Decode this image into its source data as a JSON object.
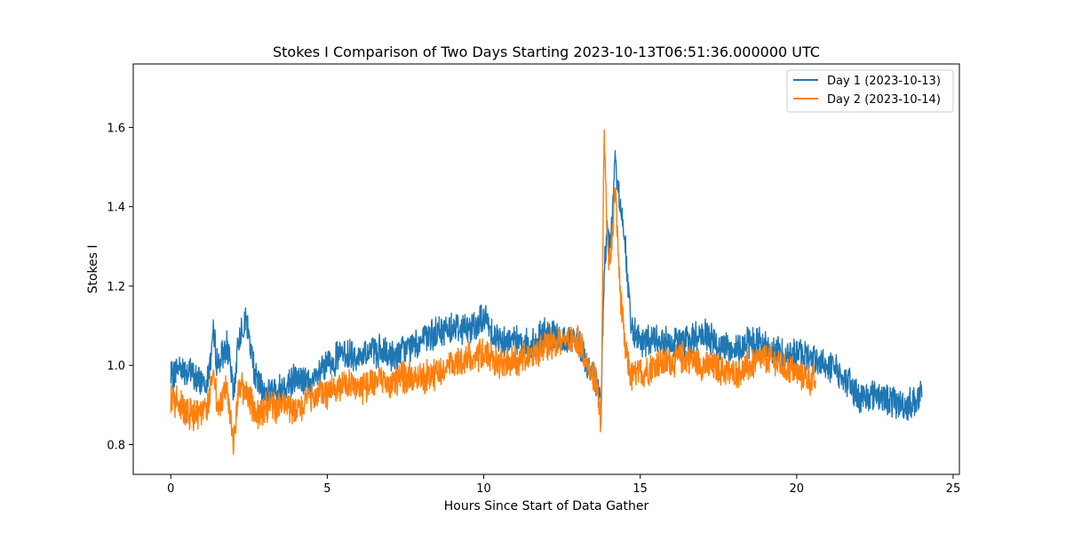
{
  "chart_data": {
    "type": "line",
    "title": "Stokes I Comparison of Two Days Starting 2023-10-13T06:51:36.000000 UTC",
    "xlabel": "Hours Since Start of Data Gather",
    "ylabel": "Stokes I",
    "xlim": [
      -1.2,
      25.2
    ],
    "ylim": [
      0.725,
      1.76
    ],
    "xticks": [
      0,
      5,
      10,
      15,
      20,
      25
    ],
    "xtick_labels": [
      "0",
      "5",
      "10",
      "15",
      "20",
      "25"
    ],
    "yticks": [
      0.8,
      1.0,
      1.2,
      1.4,
      1.6
    ],
    "ytick_labels": [
      "0.8",
      "1.0",
      "1.2",
      "1.4",
      "1.6"
    ],
    "grid": false,
    "legend_position": "top-right",
    "series": [
      {
        "name": "Day 1 (2023-10-13)",
        "color": "#1f77b4",
        "x": [
          0,
          0.3,
          0.6,
          0.9,
          1.2,
          1.35,
          1.5,
          1.8,
          2.0,
          2.2,
          2.4,
          2.7,
          3.0,
          3.5,
          4.0,
          4.5,
          5.0,
          5.5,
          6.0,
          6.5,
          7.0,
          7.5,
          8.0,
          8.5,
          9.0,
          9.5,
          10.0,
          10.5,
          11.0,
          11.5,
          12.0,
          12.5,
          13.0,
          13.3,
          13.6,
          13.75,
          13.85,
          13.95,
          14.05,
          14.2,
          14.35,
          14.5,
          14.7,
          15.0,
          15.5,
          16.0,
          16.5,
          17.0,
          17.5,
          18.0,
          18.5,
          19.0,
          19.5,
          20.0,
          20.5,
          21.0,
          21.5,
          22.0,
          22.5,
          23.0,
          23.5,
          24.0
        ],
        "y": [
          0.97,
          1.0,
          0.98,
          0.96,
          0.97,
          1.08,
          1.0,
          1.05,
          0.93,
          1.08,
          1.12,
          0.97,
          0.93,
          0.94,
          0.97,
          0.95,
          1.0,
          1.03,
          1.02,
          1.04,
          1.02,
          1.04,
          1.06,
          1.08,
          1.1,
          1.09,
          1.12,
          1.06,
          1.07,
          1.05,
          1.08,
          1.06,
          1.07,
          1.0,
          0.96,
          0.9,
          1.25,
          1.34,
          1.3,
          1.5,
          1.42,
          1.33,
          1.1,
          1.05,
          1.07,
          1.06,
          1.06,
          1.08,
          1.05,
          1.04,
          1.06,
          1.05,
          1.03,
          1.03,
          1.02,
          1.0,
          0.97,
          0.92,
          0.93,
          0.91,
          0.9,
          0.92
        ]
      },
      {
        "name": "Day 2 (2023-10-14)",
        "color": "#ff7f0e",
        "x": [
          0,
          0.3,
          0.6,
          0.9,
          1.2,
          1.35,
          1.5,
          1.8,
          2.0,
          2.2,
          2.4,
          2.7,
          3.0,
          3.5,
          4.0,
          4.5,
          5.0,
          5.5,
          6.0,
          6.5,
          7.0,
          7.5,
          8.0,
          8.5,
          9.0,
          9.5,
          10.0,
          10.5,
          11.0,
          11.5,
          12.0,
          12.5,
          13.0,
          13.3,
          13.6,
          13.75,
          13.85,
          13.95,
          14.05,
          14.2,
          14.35,
          14.5,
          14.7,
          15.0,
          15.5,
          16.0,
          16.5,
          17.0,
          17.5,
          18.0,
          18.5,
          19.0,
          19.5,
          20.0,
          20.6
        ],
        "y": [
          0.92,
          0.9,
          0.88,
          0.87,
          0.9,
          1.0,
          0.88,
          0.95,
          0.8,
          0.95,
          0.93,
          0.88,
          0.89,
          0.9,
          0.88,
          0.92,
          0.93,
          0.95,
          0.94,
          0.96,
          0.95,
          0.97,
          0.97,
          0.98,
          1.0,
          1.02,
          1.03,
          1.0,
          1.01,
          1.02,
          1.05,
          1.06,
          1.07,
          1.0,
          0.95,
          0.85,
          1.6,
          1.3,
          1.25,
          1.45,
          1.2,
          1.05,
          0.97,
          0.98,
          1.0,
          1.01,
          1.02,
          1.0,
          0.99,
          0.98,
          1.0,
          1.02,
          1.0,
          0.98,
          0.96
        ]
      }
    ]
  }
}
